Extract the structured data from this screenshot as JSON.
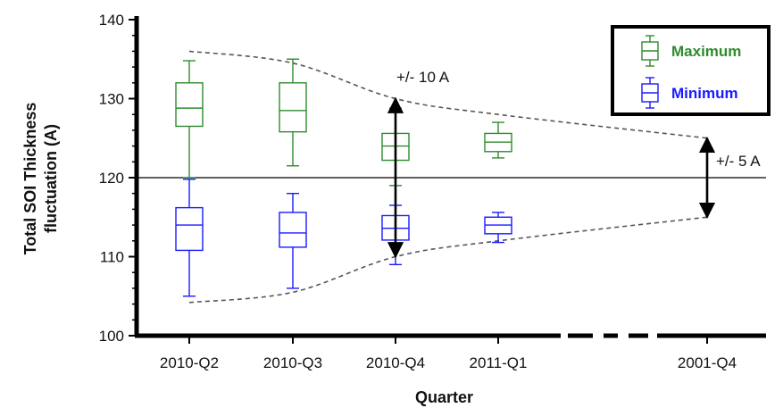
{
  "chart_data": {
    "type": "box",
    "xlabel": "Quarter",
    "ylabel_lines": [
      "Total SOI Thickness",
      "fluctuation (A)"
    ],
    "ylim": [
      100,
      140
    ],
    "yticks": [
      100,
      110,
      120,
      130,
      140
    ],
    "categories": [
      "2010-Q2",
      "2010-Q3",
      "2010-Q4",
      "2011-Q1",
      "2001-Q4"
    ],
    "reference_line": 120,
    "legend_position": "top-right",
    "series": [
      {
        "name": "Maximum",
        "color": "#2e8b2e",
        "boxes": [
          {
            "category": "2010-Q2",
            "min": 120,
            "q1": 126.5,
            "median": 128.8,
            "q3": 132,
            "max": 134.8
          },
          {
            "category": "2010-Q3",
            "min": 121.5,
            "q1": 125.8,
            "median": 128.5,
            "q3": 132,
            "max": 135
          },
          {
            "category": "2010-Q4",
            "min": 119,
            "q1": 122.2,
            "median": 124,
            "q3": 125.6,
            "max": 128.8
          },
          {
            "category": "2011-Q1",
            "min": 122.5,
            "q1": 123.3,
            "median": 124.5,
            "q3": 125.6,
            "max": 127
          }
        ]
      },
      {
        "name": "Minimum",
        "color": "#1a1aff",
        "boxes": [
          {
            "category": "2010-Q2",
            "min": 105,
            "q1": 110.8,
            "median": 114,
            "q3": 116.2,
            "max": 119.8
          },
          {
            "category": "2010-Q3",
            "min": 106,
            "q1": 111.2,
            "median": 113,
            "q3": 115.6,
            "max": 118
          },
          {
            "category": "2010-Q4",
            "min": 109,
            "q1": 112.1,
            "median": 113.6,
            "q3": 115.2,
            "max": 116.5
          },
          {
            "category": "2011-Q1",
            "min": 111.8,
            "q1": 112.9,
            "median": 114,
            "q3": 115,
            "max": 115.6
          }
        ]
      }
    ],
    "envelope": {
      "upper": [
        {
          "x": "2010-Q2",
          "y": 136
        },
        {
          "x": "2010-Q3",
          "y": 134.5
        },
        {
          "x": "2010-Q4",
          "y": 130
        },
        {
          "x": "2011-Q1",
          "y": 128
        },
        {
          "x": "2001-Q4",
          "y": 125
        }
      ],
      "lower": [
        {
          "x": "2010-Q2",
          "y": 104.2
        },
        {
          "x": "2010-Q3",
          "y": 105.5
        },
        {
          "x": "2010-Q4",
          "y": 110
        },
        {
          "x": "2011-Q1",
          "y": 112
        },
        {
          "x": "2001-Q4",
          "y": 115
        }
      ]
    },
    "annotations": [
      {
        "text": "+/- 10 A",
        "x": "2010-Q4",
        "y_from": 110,
        "y_to": 130
      },
      {
        "text": "+/- 5 A",
        "x": "2001-Q4",
        "y_from": 115,
        "y_to": 125
      }
    ]
  }
}
